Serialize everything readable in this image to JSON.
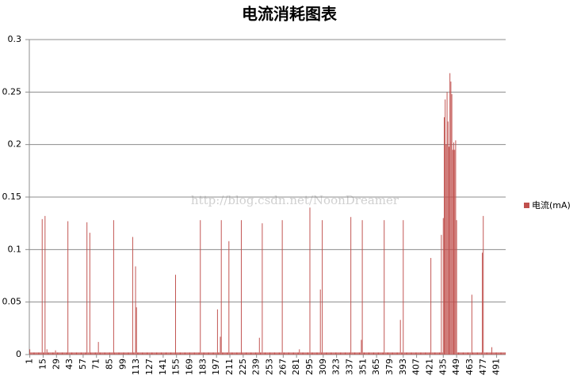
{
  "chart_data": {
    "type": "bar",
    "title": "电流消耗图表",
    "watermark": "http://blog.csdn.net/NoonDreamer",
    "xlim": [
      0.5,
      500.5
    ],
    "xticks": [
      1,
      15,
      29,
      43,
      57,
      71,
      85,
      99,
      113,
      127,
      141,
      155,
      169,
      183,
      197,
      211,
      225,
      239,
      253,
      267,
      281,
      295,
      309,
      323,
      337,
      351,
      365,
      379,
      393,
      407,
      421,
      435,
      449,
      463,
      477,
      491
    ],
    "ylim": [
      0,
      0.3
    ],
    "yticks": [
      0,
      0.05,
      0.1,
      0.15,
      0.2,
      0.25,
      0.3
    ],
    "grid": true,
    "legend": "right",
    "series": [
      {
        "name": "电流(mA)",
        "color": "#c0504d",
        "values": [
          0.005,
          0.002,
          0.002,
          0.002,
          0.002,
          0.002,
          0.002,
          0.002,
          0.002,
          0.002,
          0.002,
          0.002,
          0.002,
          0.129,
          0.002,
          0.002,
          0.132,
          0.002,
          0.005,
          0.002,
          0.002,
          0.002,
          0.002,
          0.002,
          0.002,
          0.002,
          0.002,
          0.004,
          0.002,
          0.002,
          0.002,
          0.002,
          0.002,
          0.002,
          0.002,
          0.002,
          0.002,
          0.002,
          0.002,
          0.002,
          0.127,
          0.002,
          0.002,
          0.002,
          0.002,
          0.002,
          0.002,
          0.002,
          0.002,
          0.002,
          0.002,
          0.002,
          0.002,
          0.002,
          0.002,
          0.002,
          0.002,
          0.002,
          0.002,
          0.002,
          0.126,
          0.002,
          0.002,
          0.116,
          0.002,
          0.002,
          0.002,
          0.002,
          0.002,
          0.002,
          0.002,
          0.002,
          0.012,
          0.002,
          0.002,
          0.002,
          0.002,
          0.002,
          0.002,
          0.002,
          0.002,
          0.002,
          0.002,
          0.002,
          0.002,
          0.002,
          0.002,
          0.002,
          0.128,
          0.002,
          0.002,
          0.002,
          0.002,
          0.002,
          0.002,
          0.002,
          0.002,
          0.002,
          0.002,
          0.002,
          0.002,
          0.002,
          0.002,
          0.002,
          0.002,
          0.002,
          0.002,
          0.002,
          0.112,
          0.002,
          0.002,
          0.084,
          0.045,
          0.002,
          0.002,
          0.002,
          0.002,
          0.002,
          0.002,
          0.002,
          0.002,
          0.002,
          0.002,
          0.002,
          0.002,
          0.002,
          0.002,
          0.002,
          0.002,
          0.002,
          0.002,
          0.002,
          0.002,
          0.002,
          0.002,
          0.002,
          0.002,
          0.002,
          0.002,
          0.002,
          0.002,
          0.002,
          0.002,
          0.002,
          0.002,
          0.002,
          0.002,
          0.002,
          0.002,
          0.002,
          0.002,
          0.002,
          0.002,
          0.076,
          0.002,
          0.002,
          0.002,
          0.002,
          0.002,
          0.002,
          0.002,
          0.002,
          0.002,
          0.002,
          0.002,
          0.002,
          0.002,
          0.002,
          0.002,
          0.002,
          0.002,
          0.002,
          0.002,
          0.002,
          0.002,
          0.002,
          0.002,
          0.002,
          0.002,
          0.128,
          0.002,
          0.002,
          0.002,
          0.002,
          0.002,
          0.002,
          0.002,
          0.002,
          0.002,
          0.002,
          0.002,
          0.002,
          0.002,
          0.002,
          0.002,
          0.002,
          0.002,
          0.043,
          0.002,
          0.002,
          0.017,
          0.128,
          0.002,
          0.002,
          0.002,
          0.002,
          0.002,
          0.002,
          0.002,
          0.108,
          0.002,
          0.002,
          0.002,
          0.002,
          0.002,
          0.002,
          0.002,
          0.002,
          0.002,
          0.002,
          0.002,
          0.002,
          0.128,
          0.002,
          0.002,
          0.002,
          0.002,
          0.002,
          0.002,
          0.002,
          0.002,
          0.002,
          0.002,
          0.002,
          0.002,
          0.002,
          0.002,
          0.002,
          0.002,
          0.002,
          0.002,
          0.016,
          0.002,
          0.002,
          0.125,
          0.002,
          0.002,
          0.002,
          0.002,
          0.002,
          0.002,
          0.002,
          0.002,
          0.002,
          0.002,
          0.002,
          0.002,
          0.002,
          0.002,
          0.002,
          0.002,
          0.002,
          0.002,
          0.002,
          0.002,
          0.128,
          0.002,
          0.002,
          0.002,
          0.002,
          0.002,
          0.002,
          0.002,
          0.002,
          0.002,
          0.002,
          0.002,
          0.002,
          0.002,
          0.002,
          0.002,
          0.002,
          0.002,
          0.005,
          0.002,
          0.002,
          0.002,
          0.002,
          0.002,
          0.002,
          0.002,
          0.002,
          0.002,
          0.002,
          0.14,
          0.002,
          0.002,
          0.002,
          0.002,
          0.002,
          0.002,
          0.002,
          0.002,
          0.002,
          0.002,
          0.062,
          0.002,
          0.128,
          0.002,
          0.002,
          0.002,
          0.002,
          0.002,
          0.002,
          0.002,
          0.002,
          0.002,
          0.002,
          0.002,
          0.002,
          0.002,
          0.002,
          0.002,
          0.002,
          0.002,
          0.002,
          0.002,
          0.002,
          0.002,
          0.002,
          0.002,
          0.002,
          0.002,
          0.002,
          0.002,
          0.002,
          0.002,
          0.131,
          0.002,
          0.002,
          0.002,
          0.002,
          0.002,
          0.002,
          0.002,
          0.002,
          0.002,
          0.002,
          0.014,
          0.128,
          0.002,
          0.002,
          0.002,
          0.002,
          0.002,
          0.002,
          0.002,
          0.002,
          0.002,
          0.002,
          0.002,
          0.002,
          0.002,
          0.002,
          0.002,
          0.002,
          0.002,
          0.002,
          0.002,
          0.002,
          0.002,
          0.002,
          0.128,
          0.002,
          0.002,
          0.002,
          0.002,
          0.002,
          0.002,
          0.002,
          0.002,
          0.002,
          0.002,
          0.002,
          0.002,
          0.002,
          0.002,
          0.002,
          0.002,
          0.033,
          0.002,
          0.002,
          0.128,
          0.002,
          0.002,
          0.002,
          0.002,
          0.002,
          0.002,
          0.002,
          0.002,
          0.002,
          0.002,
          0.002,
          0.002,
          0.002,
          0.002,
          0.002,
          0.002,
          0.002,
          0.002,
          0.002,
          0.002,
          0.002,
          0.002,
          0.002,
          0.002,
          0.002,
          0.002,
          0.002,
          0.002,
          0.092,
          0.002,
          0.002,
          0.002,
          0.002,
          0.002,
          0.002,
          0.002,
          0.002,
          0.002,
          0.002,
          0.114,
          0.002,
          0.13,
          0.226,
          0.243,
          0.2,
          0.25,
          0.222,
          0.198,
          0.268,
          0.26,
          0.248,
          0.195,
          0.202,
          0.195,
          0.204,
          0.128,
          0.002,
          0.002,
          0.002,
          0.002,
          0.002,
          0.002,
          0.002,
          0.002,
          0.002,
          0.002,
          0.002,
          0.002,
          0.002,
          0.002,
          0.002,
          0.057,
          0.002,
          0.002,
          0.002,
          0.002,
          0.002,
          0.002,
          0.002,
          0.002,
          0.002,
          0.002,
          0.097,
          0.132,
          0.002,
          0.002,
          0.002,
          0.002,
          0.002,
          0.002,
          0.002,
          0.002,
          0.007,
          0.002,
          0.002,
          0.002,
          0.002,
          0.002,
          0.002,
          0.002,
          0.002,
          0.002,
          0.002,
          0.002,
          0.002,
          0.002,
          0.002
        ]
      }
    ]
  }
}
